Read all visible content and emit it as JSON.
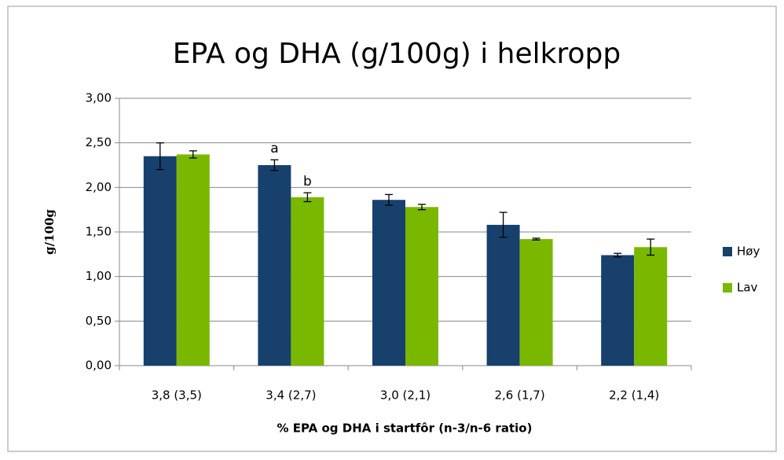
{
  "chart_data": {
    "type": "bar",
    "title": "EPA og DHA (g/100g) i helkropp",
    "x_label": "% EPA og DHA i startfôr (n-3/n-6 ratio)",
    "y_label": "g/100g",
    "categories": [
      "3,8 (3,5)",
      "3,4 (2,7)",
      "3,0 (2,1)",
      "2,6 (1,7)",
      "2,2 (1,4)"
    ],
    "series": [
      {
        "name": "Høy",
        "color": "#17406d",
        "values": [
          2.35,
          2.25,
          1.86,
          1.58,
          1.24
        ],
        "errors": [
          0.15,
          0.06,
          0.06,
          0.14,
          0.02
        ]
      },
      {
        "name": "Lav",
        "color": "#7ab800",
        "values": [
          2.37,
          1.89,
          1.78,
          1.42,
          1.33
        ],
        "errors": [
          0.04,
          0.05,
          0.03,
          0.01,
          0.09
        ]
      }
    ],
    "annotations": [
      {
        "text": "a",
        "series": 0,
        "category": 1
      },
      {
        "text": "b",
        "series": 1,
        "category": 1
      }
    ],
    "ylim": [
      0,
      3
    ],
    "yticks": [
      {
        "value": 0,
        "label": "0,00"
      },
      {
        "value": 0.5,
        "label": "0,50"
      },
      {
        "value": 1,
        "label": "1,00"
      },
      {
        "value": 1.5,
        "label": "1,50"
      },
      {
        "value": 2,
        "label": "2,00"
      },
      {
        "value": 2.5,
        "label": "2,50"
      },
      {
        "value": 3,
        "label": "3,00"
      }
    ],
    "grid": true,
    "legend": "right"
  }
}
